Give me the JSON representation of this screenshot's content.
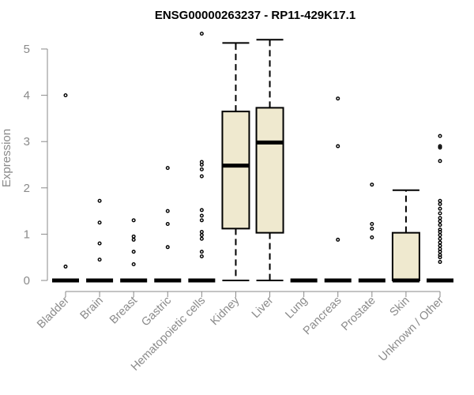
{
  "chart_data": {
    "type": "box",
    "title": "ENSG00000263237 - RP11-429K17.1",
    "ylabel": "Expression",
    "xlabel": "",
    "ylim": [
      0,
      5.4
    ],
    "yticks": [
      0,
      1,
      2,
      3,
      4,
      5
    ],
    "grid": false,
    "legend": "none",
    "colors": {
      "box_fill": "#efe9cf",
      "axis": "#8a8a8a",
      "title": "#000000"
    },
    "categories": [
      "Bladder",
      "Brain",
      "Breast",
      "Gastric",
      "Hematopoietic cells",
      "Kidney",
      "Liver",
      "Lung",
      "Pancreas",
      "Prostate",
      "Skin",
      "Unknown / Other"
    ],
    "boxes": [
      {
        "category": "Bladder",
        "min": 0,
        "q1": 0,
        "median": 0,
        "q3": 0,
        "max": 0,
        "outliers": [
          0.3,
          4.0
        ]
      },
      {
        "category": "Brain",
        "min": 0,
        "q1": 0,
        "median": 0,
        "q3": 0,
        "max": 0,
        "outliers": [
          0.45,
          0.8,
          1.25,
          1.72
        ]
      },
      {
        "category": "Breast",
        "min": 0,
        "q1": 0,
        "median": 0,
        "q3": 0,
        "max": 0,
        "outliers": [
          0.35,
          0.62,
          0.88,
          0.95,
          1.3
        ]
      },
      {
        "category": "Gastric",
        "min": 0,
        "q1": 0,
        "median": 0,
        "q3": 0,
        "max": 0,
        "outliers": [
          0.72,
          1.22,
          1.5,
          2.43
        ]
      },
      {
        "category": "Hematopoietic cells",
        "min": 0,
        "q1": 0,
        "median": 0,
        "q3": 0,
        "max": 0,
        "outliers": [
          0.52,
          0.62,
          0.9,
          0.98,
          1.05,
          1.3,
          1.4,
          1.52,
          2.25,
          2.4,
          2.5,
          2.56,
          5.33
        ]
      },
      {
        "category": "Kidney",
        "min": 0,
        "q1": 1.12,
        "median": 2.48,
        "q3": 3.65,
        "max": 5.13,
        "outliers": []
      },
      {
        "category": "Liver",
        "min": 0,
        "q1": 1.03,
        "median": 2.98,
        "q3": 3.73,
        "max": 5.2,
        "outliers": []
      },
      {
        "category": "Lung",
        "min": 0,
        "q1": 0,
        "median": 0,
        "q3": 0,
        "max": 0,
        "outliers": []
      },
      {
        "category": "Pancreas",
        "min": 0,
        "q1": 0,
        "median": 0,
        "q3": 0,
        "max": 0,
        "outliers": [
          0.88,
          2.9,
          3.93
        ]
      },
      {
        "category": "Prostate",
        "min": 0,
        "q1": 0,
        "median": 0,
        "q3": 0,
        "max": 0,
        "outliers": [
          0.93,
          1.12,
          1.22,
          2.07
        ]
      },
      {
        "category": "Skin",
        "min": 0,
        "q1": 0,
        "median": 0,
        "q3": 1.03,
        "max": 1.95,
        "outliers": []
      },
      {
        "category": "Unknown / Other",
        "min": 0,
        "q1": 0,
        "median": 0,
        "q3": 0,
        "max": 0,
        "outliers": [
          0.4,
          0.5,
          0.55,
          0.62,
          0.68,
          0.75,
          0.82,
          0.9,
          0.98,
          1.05,
          1.1,
          1.2,
          1.28,
          1.35,
          1.45,
          1.55,
          1.65,
          1.72,
          2.58,
          2.87,
          2.9,
          3.12
        ]
      }
    ]
  }
}
